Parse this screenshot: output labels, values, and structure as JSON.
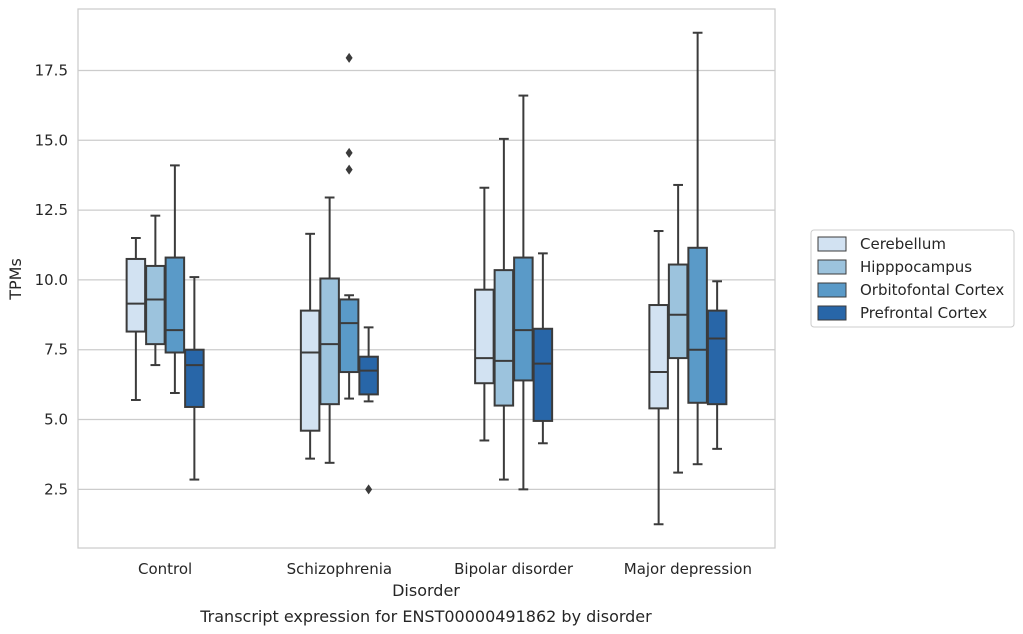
{
  "chart_data": {
    "type": "box",
    "xlabel": "Disorder",
    "ylabel": "TPMs",
    "caption": "Transcript expression for ENST00000491862 by disorder",
    "categories": [
      "Control",
      "Schizophrenia",
      "Bipolar disorder",
      "Major depression"
    ],
    "y_ticks": [
      "2.5",
      "5.0",
      "7.5",
      "10.0",
      "12.5",
      "15.0",
      "17.5"
    ],
    "y_tick_values": [
      2.5,
      5.0,
      7.5,
      10.0,
      12.5,
      15.0,
      17.5
    ],
    "ylim": [
      0.4,
      19.7
    ],
    "grid": "horizontal",
    "legend_position": "right",
    "series": [
      {
        "name": "Cerebellum",
        "color": "#d2e2f2",
        "boxes": [
          {
            "whisker_low": 5.7,
            "q1": 8.15,
            "median": 9.15,
            "q3": 10.75,
            "whisker_high": 11.5,
            "outliers": []
          },
          {
            "whisker_low": 3.6,
            "q1": 4.6,
            "median": 7.4,
            "q3": 8.9,
            "whisker_high": 11.65,
            "outliers": []
          },
          {
            "whisker_low": 4.25,
            "q1": 6.3,
            "median": 7.2,
            "q3": 9.65,
            "whisker_high": 13.3,
            "outliers": []
          },
          {
            "whisker_low": 1.25,
            "q1": 5.4,
            "median": 6.7,
            "q3": 9.1,
            "whisker_high": 11.75,
            "outliers": []
          }
        ]
      },
      {
        "name": "Hipppocampus",
        "color": "#9cc3dd",
        "boxes": [
          {
            "whisker_low": 6.95,
            "q1": 7.7,
            "median": 9.3,
            "q3": 10.5,
            "whisker_high": 12.3,
            "outliers": []
          },
          {
            "whisker_low": 3.45,
            "q1": 5.55,
            "median": 7.7,
            "q3": 10.05,
            "whisker_high": 12.95,
            "outliers": []
          },
          {
            "whisker_low": 2.85,
            "q1": 5.5,
            "median": 7.1,
            "q3": 10.35,
            "whisker_high": 15.05,
            "outliers": []
          },
          {
            "whisker_low": 3.1,
            "q1": 7.2,
            "median": 8.75,
            "q3": 10.55,
            "whisker_high": 13.4,
            "outliers": []
          }
        ]
      },
      {
        "name": "Orbitofontal Cortex",
        "color": "#5a9ac8",
        "boxes": [
          {
            "whisker_low": 5.95,
            "q1": 7.4,
            "median": 8.2,
            "q3": 10.8,
            "whisker_high": 14.1,
            "outliers": []
          },
          {
            "whisker_low": 5.75,
            "q1": 6.7,
            "median": 8.45,
            "q3": 9.3,
            "whisker_high": 9.45,
            "outliers": [
              13.95,
              14.55,
              17.95
            ]
          },
          {
            "whisker_low": 2.5,
            "q1": 6.4,
            "median": 8.2,
            "q3": 10.8,
            "whisker_high": 16.6,
            "outliers": []
          },
          {
            "whisker_low": 3.4,
            "q1": 5.6,
            "median": 7.5,
            "q3": 11.15,
            "whisker_high": 18.85,
            "outliers": []
          }
        ]
      },
      {
        "name": "Prefrontal Cortex",
        "color": "#2866a8",
        "boxes": [
          {
            "whisker_low": 2.85,
            "q1": 5.45,
            "median": 6.95,
            "q3": 7.5,
            "whisker_high": 10.1,
            "outliers": []
          },
          {
            "whisker_low": 5.65,
            "q1": 5.9,
            "median": 6.75,
            "q3": 7.25,
            "whisker_high": 8.3,
            "outliers": [
              2.5
            ]
          },
          {
            "whisker_low": 4.15,
            "q1": 4.95,
            "median": 7.0,
            "q3": 8.25,
            "whisker_high": 10.95,
            "outliers": []
          },
          {
            "whisker_low": 3.95,
            "q1": 5.55,
            "median": 7.9,
            "q3": 8.9,
            "whisker_high": 9.95,
            "outliers": []
          }
        ]
      }
    ]
  }
}
